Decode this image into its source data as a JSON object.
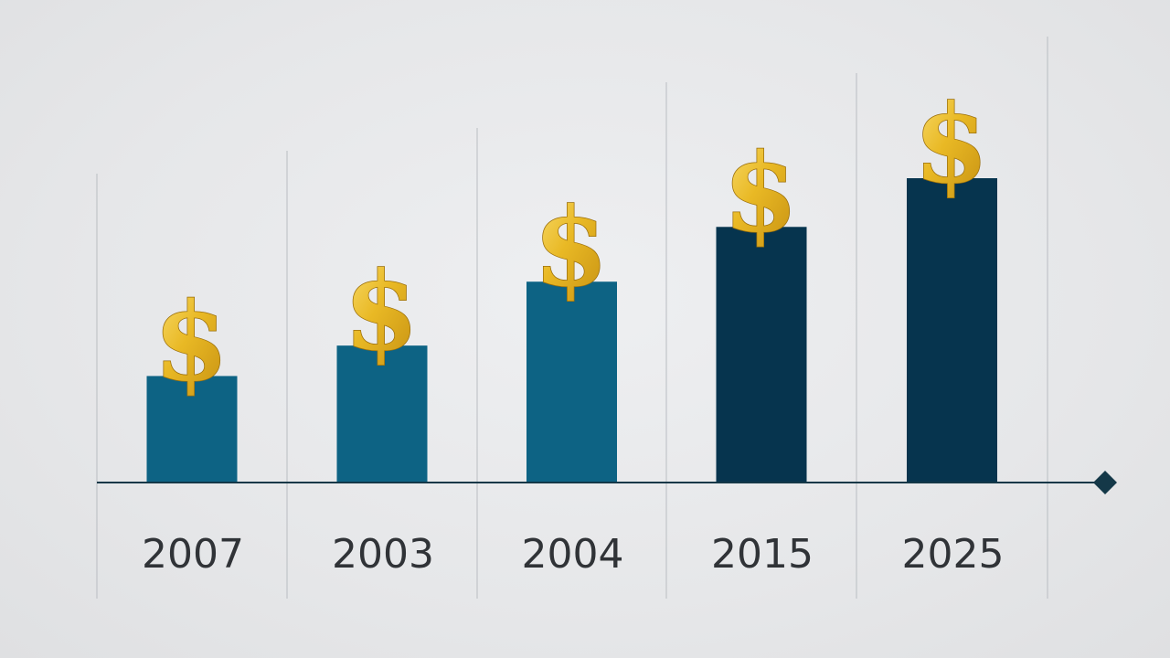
{
  "chart_data": {
    "type": "bar",
    "title": "",
    "xlabel": "",
    "ylabel": "",
    "categories": [
      "2007",
      "2003",
      "2004",
      "2015",
      "2025"
    ],
    "values": [
      35,
      45,
      66,
      84,
      100
    ],
    "ylim": [
      0,
      100
    ],
    "grid": "vertical",
    "bar_colors": [
      "#0d6384",
      "#0d6384",
      "#0d6384",
      "#06344e",
      "#06344e"
    ],
    "marker_icon": "dollar-sign-icon",
    "marker_text": "$",
    "marker_color": "#e4b423",
    "axis_end_icon": "diamond-icon",
    "axis_color": "#143848"
  }
}
